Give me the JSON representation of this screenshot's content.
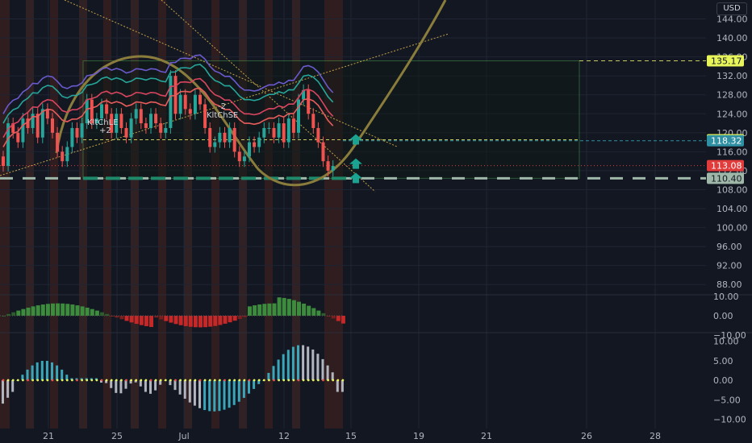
{
  "currency": "USD",
  "price_axis": {
    "ticks": [
      "144.00",
      "140.00",
      "136.00",
      "132.00",
      "128.00",
      "124.00",
      "120.00",
      "116.00",
      "112.00",
      "108.00",
      "104.00",
      "100.00",
      "96.00",
      "92.00",
      "88.00"
    ],
    "badges": [
      {
        "value": "135.17",
        "bg": "#e8f55a",
        "fg": "#131722"
      },
      {
        "value": "118.52",
        "bg": "#e8f55a",
        "fg": "#131722"
      },
      {
        "value": "118.32",
        "bg": "#2f8fa3",
        "fg": "#ffffff"
      },
      {
        "value": "113.08",
        "bg": "#e23b3b",
        "fg": "#ffffff"
      },
      {
        "value": "110.40",
        "bg": "#9fb7a8",
        "fg": "#131722"
      }
    ]
  },
  "osc1_axis": {
    "ticks": [
      "10.00",
      "0.00",
      "−10.00"
    ]
  },
  "osc2_axis": {
    "ticks": [
      "10.00",
      "5.00",
      "0.00",
      "−5.00",
      "−10.00"
    ]
  },
  "time_axis": {
    "ticks": [
      "21",
      "25",
      "Jul",
      "12",
      "15",
      "19",
      "21",
      "26",
      "28"
    ]
  },
  "annotations": {
    "label_le": "KltChLE",
    "label_se": "KltChSE",
    "plus2": "+2",
    "minus2": "-2"
  },
  "colors": {
    "up": "#26a69a",
    "down": "#ef5350",
    "box": "#4caf50",
    "curve": "#8a7d3c"
  },
  "chart_data": {
    "type": "candlestick",
    "symbol_currency": "USD",
    "levels": [
      135.17,
      118.52,
      118.32,
      113.08,
      110.4
    ],
    "price_range": [
      86,
      148
    ],
    "osc1_range": [
      -12,
      12
    ],
    "osc2_range": [
      -12,
      12
    ],
    "x_ticks": [
      "21",
      "25",
      "Jul",
      "12",
      "15",
      "19",
      "21",
      "26",
      "28"
    ]
  }
}
